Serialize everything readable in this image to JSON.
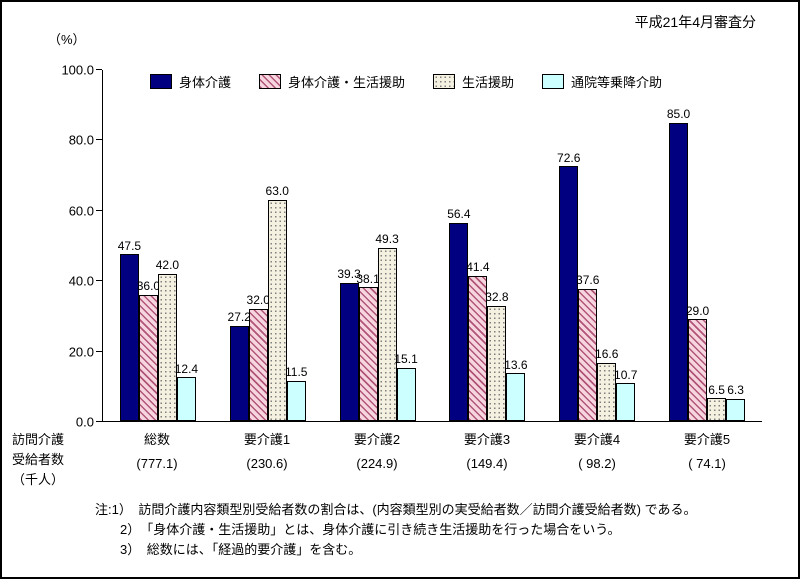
{
  "header": {
    "period_label": "平成21年4月審査分",
    "y_axis_unit": "（%）"
  },
  "chart_data": {
    "type": "bar",
    "title": "",
    "xlabel": "",
    "ylabel": "(%)",
    "ylim": [
      0,
      100
    ],
    "yticks": [
      0,
      20,
      40,
      60,
      80,
      100
    ],
    "grid": false,
    "legend_position": "top",
    "categories": [
      "総数",
      "要介護1",
      "要介護2",
      "要介護3",
      "要介護4",
      "要介護5"
    ],
    "category_sublabels": [
      "(777.1)",
      "(230.6)",
      "(224.9)",
      "(149.4)",
      "( 98.2)",
      "( 74.1)"
    ],
    "series": [
      {
        "name": "身体介護",
        "pattern": "solid",
        "color": "#000080",
        "values": [
          47.5,
          27.2,
          39.3,
          56.4,
          72.6,
          85.0
        ]
      },
      {
        "name": "身体介護・生活援助",
        "pattern": "diagonal",
        "color": "#C2638A",
        "pattern_fg": "#B05578",
        "pattern_bg": "#F6D5DF",
        "values": [
          36.0,
          32.0,
          38.1,
          41.4,
          37.6,
          29.0
        ]
      },
      {
        "name": "生活援助",
        "pattern": "dots",
        "color": "#F5F1E1",
        "pattern_fg": "#7F7F7F",
        "pattern_bg": "#F5F1E1",
        "values": [
          42.0,
          63.0,
          49.3,
          32.8,
          16.6,
          6.5
        ]
      },
      {
        "name": "通院等乗降介助",
        "pattern": "solid",
        "color": "#CCFFFF",
        "values": [
          12.4,
          11.5,
          15.1,
          13.6,
          10.7,
          6.3
        ]
      }
    ]
  },
  "axis_label": {
    "lines": [
      "訪問介護",
      "受給者数",
      "（千人）"
    ]
  },
  "notes": [
    "注:1）　訪問介護内容類型別受給者数の割合は、(内容類型別の実受給者数／訪問介護受給者数) である。",
    "2）　「身体介護・生活援助」とは、身体介護に引き続き生活援助を行った場合をいう。",
    "3）　総数には、「経過的要介護」を含む。"
  ]
}
